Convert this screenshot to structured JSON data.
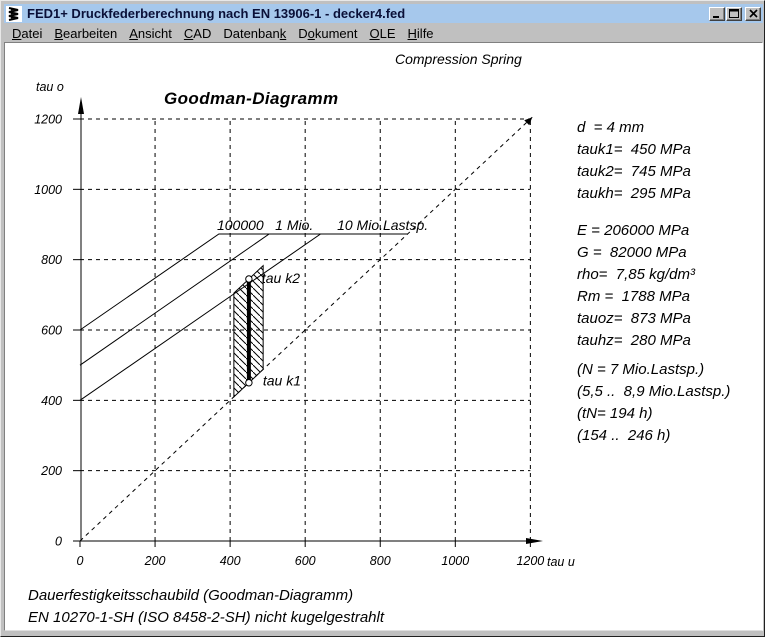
{
  "window": {
    "title": "FED1+  Druckfederberechnung nach EN 13906-1  -  decker4.fed",
    "icon": "spring-icon",
    "controls": [
      "minimize-icon",
      "maximize-icon",
      "close-icon"
    ]
  },
  "menu": {
    "items": [
      {
        "label": "Datei",
        "underline": 0
      },
      {
        "label": "Bearbeiten",
        "underline": 0
      },
      {
        "label": "Ansicht",
        "underline": 0
      },
      {
        "label": "CAD",
        "underline": 0
      },
      {
        "label": "Datenbank",
        "underline": 8
      },
      {
        "label": "Dokument",
        "underline": 1
      },
      {
        "label": "OLE",
        "underline": 0
      },
      {
        "label": "Hilfe",
        "underline": 0
      }
    ]
  },
  "chart": {
    "corner_label": "Compression Spring"
  },
  "chart_data": {
    "type": "line",
    "title": "Goodman-Diagramm",
    "xlabel": "tau u",
    "ylabel": "tau o",
    "xlim": [
      0,
      1200
    ],
    "ylim": [
      0,
      1200
    ],
    "x_ticks": [
      0,
      200,
      400,
      600,
      800,
      1000,
      1200
    ],
    "y_ticks": [
      0,
      200,
      400,
      600,
      800,
      1000,
      1200
    ],
    "grid": true,
    "grid_style": "dashed",
    "legend_position": "none",
    "plateau_tau_oz": 873,
    "diagonal": {
      "style": "dashed",
      "from": [
        0,
        0
      ],
      "to": [
        1205,
        1205
      ],
      "meaning": "tau o = tau u"
    },
    "series": [
      {
        "name": "100000",
        "points": [
          [
            0,
            600
          ],
          [
            370,
            873
          ],
          [
            873,
            873
          ]
        ],
        "label_u": 365
      },
      {
        "name": "1 Mio.",
        "points": [
          [
            0,
            500
          ],
          [
            504,
            873
          ],
          [
            873,
            873
          ]
        ],
        "label_u": 520
      },
      {
        "name": "10 Mio.Lastsp.",
        "points": [
          [
            0,
            400
          ],
          [
            641,
            873
          ],
          [
            873,
            873
          ]
        ],
        "label_u": 685
      }
    ],
    "load_line": {
      "tau_u": 450,
      "tau_k1": 450,
      "tau_k2": 745,
      "label_k1": "tau k1",
      "label_k2": "tau k2"
    },
    "hatch_band": {
      "u_from": 410,
      "u_to": 488,
      "offset": 295
    }
  },
  "right_panel": {
    "groups": [
      [
        "d  = 4 mm",
        "tauk1=  450 MPa",
        "tauk2=  745 MPa",
        "taukh=  295 MPa"
      ],
      [
        "E = 206000 MPa",
        "G =  82000 MPa",
        "rho=  7,85 kg/dm³",
        "Rm =  1788 MPa",
        "tauoz=  873 MPa",
        "tauhz=  280 MPa"
      ],
      [
        "(N = 7 Mio.Lastsp.)",
        "(5,5 ..  8,9 Mio.Lastsp.)",
        "(tN= 194 h)",
        "(154 ..  246 h)"
      ]
    ]
  },
  "captions": [
    "Dauerfestigkeitsschaubild (Goodman-Diagramm)",
    "EN 10270-1-SH (ISO 8458-2-SH) nicht kugelgestrahlt"
  ],
  "colors": {
    "titlebar_bg": "#a6c8ec",
    "titlebar_text": "#0a1038",
    "chrome": "#c0c0c0",
    "client_bg": "#ffffff",
    "ink": "#000000",
    "icon_red": "#d40000",
    "icon_yellow": "#f0d000"
  }
}
